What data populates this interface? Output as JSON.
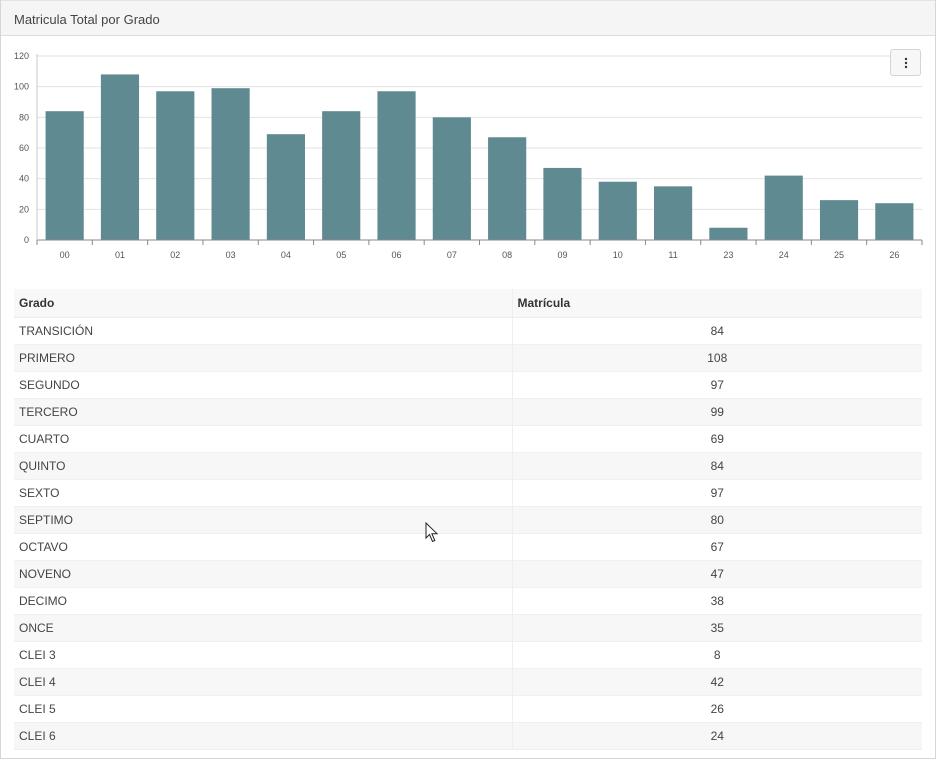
{
  "panel": {
    "title": "Matricula Total por Grado"
  },
  "icons": {
    "menu": "vertical-ellipsis-icon",
    "cursor": "mouse-pointer-icon"
  },
  "colors": {
    "bar": "#5f8a92",
    "header_bg": "#f5f5f5",
    "stripe": "#f7f7f7"
  },
  "chart_data": {
    "type": "bar",
    "categories": [
      "00",
      "01",
      "02",
      "03",
      "04",
      "05",
      "06",
      "07",
      "08",
      "09",
      "10",
      "11",
      "23",
      "24",
      "25",
      "26"
    ],
    "values": [
      84,
      108,
      97,
      99,
      69,
      84,
      97,
      80,
      67,
      47,
      38,
      35,
      8,
      42,
      26,
      24
    ],
    "yticks": [
      0,
      20,
      40,
      60,
      80,
      100,
      120
    ],
    "ylim": [
      0,
      120
    ],
    "grid": true
  },
  "table": {
    "headers": {
      "grado": "Grado",
      "matricula": "Matrícula"
    },
    "rows": [
      {
        "grado": "TRANSICIÓN",
        "matricula": "84"
      },
      {
        "grado": "PRIMERO",
        "matricula": "108"
      },
      {
        "grado": "SEGUNDO",
        "matricula": "97"
      },
      {
        "grado": "TERCERO",
        "matricula": "99"
      },
      {
        "grado": "CUARTO",
        "matricula": "69"
      },
      {
        "grado": "QUINTO",
        "matricula": "84"
      },
      {
        "grado": "SEXTO",
        "matricula": "97"
      },
      {
        "grado": "SEPTIMO",
        "matricula": "80"
      },
      {
        "grado": "OCTAVO",
        "matricula": "67"
      },
      {
        "grado": "NOVENO",
        "matricula": "47"
      },
      {
        "grado": "DECIMO",
        "matricula": "38"
      },
      {
        "grado": "ONCE",
        "matricula": "35"
      },
      {
        "grado": "CLEI 3",
        "matricula": "8"
      },
      {
        "grado": "CLEI 4",
        "matricula": "42"
      },
      {
        "grado": "CLEI 5",
        "matricula": "26"
      },
      {
        "grado": "CLEI 6",
        "matricula": "24"
      }
    ]
  }
}
